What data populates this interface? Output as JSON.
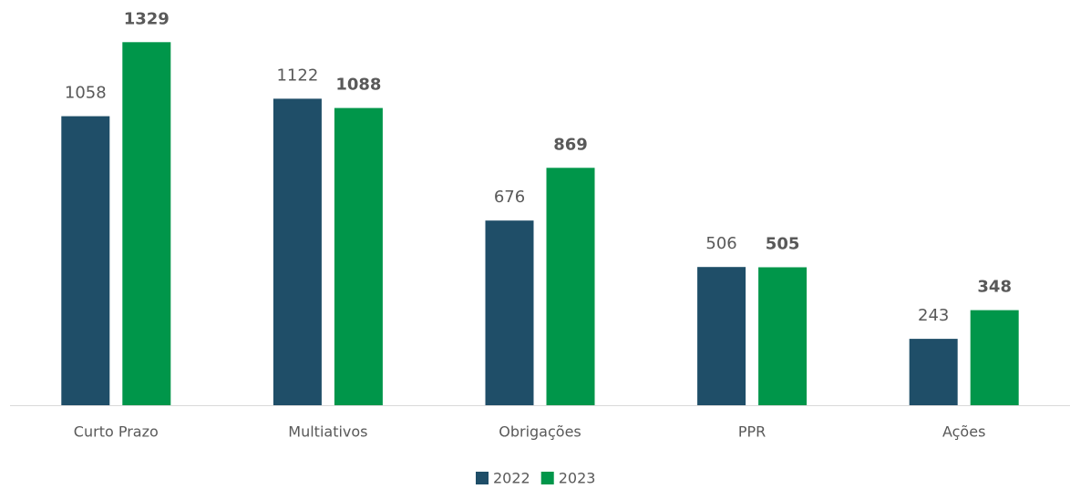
{
  "chart_data": {
    "type": "bar",
    "categories": [
      "Curto Prazo",
      "Multiativos",
      "Obrigações",
      "PPR",
      "Ações"
    ],
    "series": [
      {
        "name": "2022",
        "color": "#1f4e68",
        "values": [
          1058,
          1122,
          676,
          506,
          243
        ],
        "bold_labels": false
      },
      {
        "name": "2023",
        "color": "#00964a",
        "values": [
          1329,
          1088,
          869,
          505,
          348
        ],
        "bold_labels": true
      }
    ],
    "ylim": [
      0,
      1450
    ],
    "legend": "bottom",
    "grid": false
  }
}
